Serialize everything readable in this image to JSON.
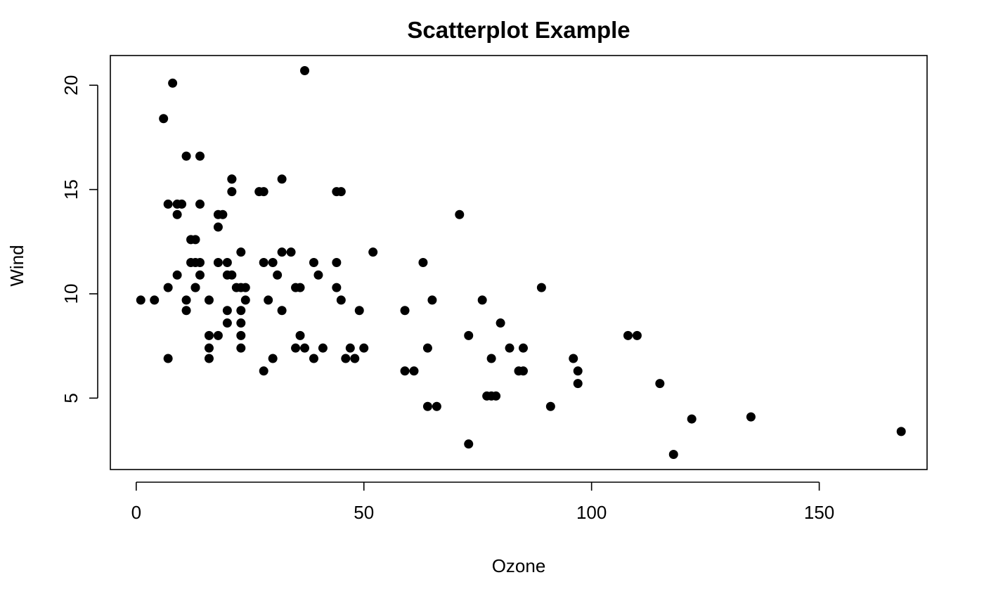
{
  "chart_data": {
    "type": "scatter",
    "title": "Scatterplot Example",
    "xlabel": "Ozone",
    "ylabel": "Wind",
    "xlim": [
      -5.68,
      173.68
    ],
    "ylim": [
      1.576,
      21.424
    ],
    "xticks": [
      0,
      50,
      100,
      150
    ],
    "yticks": [
      5,
      10,
      15,
      20
    ],
    "grid": false,
    "legend": "none",
    "point_color": "#000000",
    "points": [
      {
        "x": 41,
        "y": 7.4
      },
      {
        "x": 36,
        "y": 8.0
      },
      {
        "x": 12,
        "y": 12.6
      },
      {
        "x": 18,
        "y": 11.5
      },
      {
        "x": 28,
        "y": 14.9
      },
      {
        "x": 23,
        "y": 8.6
      },
      {
        "x": 19,
        "y": 13.8
      },
      {
        "x": 8,
        "y": 20.1
      },
      {
        "x": 7,
        "y": 6.9
      },
      {
        "x": 16,
        "y": 9.7
      },
      {
        "x": 11,
        "y": 9.2
      },
      {
        "x": 14,
        "y": 10.9
      },
      {
        "x": 18,
        "y": 13.2
      },
      {
        "x": 14,
        "y": 11.5
      },
      {
        "x": 34,
        "y": 12.0
      },
      {
        "x": 6,
        "y": 18.4
      },
      {
        "x": 30,
        "y": 11.5
      },
      {
        "x": 11,
        "y": 9.7
      },
      {
        "x": 1,
        "y": 9.7
      },
      {
        "x": 11,
        "y": 16.6
      },
      {
        "x": 4,
        "y": 9.7
      },
      {
        "x": 32,
        "y": 12.0
      },
      {
        "x": 23,
        "y": 12.0
      },
      {
        "x": 45,
        "y": 14.9
      },
      {
        "x": 115,
        "y": 5.7
      },
      {
        "x": 37,
        "y": 7.4
      },
      {
        "x": 29,
        "y": 9.7
      },
      {
        "x": 71,
        "y": 13.8
      },
      {
        "x": 39,
        "y": 11.5
      },
      {
        "x": 23,
        "y": 8.0
      },
      {
        "x": 21,
        "y": 14.9
      },
      {
        "x": 37,
        "y": 20.7
      },
      {
        "x": 20,
        "y": 9.2
      },
      {
        "x": 12,
        "y": 11.5
      },
      {
        "x": 13,
        "y": 10.3
      },
      {
        "x": 135,
        "y": 4.1
      },
      {
        "x": 49,
        "y": 9.2
      },
      {
        "x": 32,
        "y": 9.2
      },
      {
        "x": 64,
        "y": 4.6
      },
      {
        "x": 40,
        "y": 10.9
      },
      {
        "x": 77,
        "y": 5.1
      },
      {
        "x": 97,
        "y": 6.3
      },
      {
        "x": 97,
        "y": 5.7
      },
      {
        "x": 85,
        "y": 7.4
      },
      {
        "x": 10,
        "y": 14.3
      },
      {
        "x": 27,
        "y": 14.9
      },
      {
        "x": 7,
        "y": 14.3
      },
      {
        "x": 48,
        "y": 6.9
      },
      {
        "x": 35,
        "y": 10.3
      },
      {
        "x": 61,
        "y": 6.3
      },
      {
        "x": 79,
        "y": 5.1
      },
      {
        "x": 63,
        "y": 11.5
      },
      {
        "x": 16,
        "y": 6.9
      },
      {
        "x": 80,
        "y": 8.6
      },
      {
        "x": 108,
        "y": 8.0
      },
      {
        "x": 20,
        "y": 8.6
      },
      {
        "x": 52,
        "y": 12.0
      },
      {
        "x": 82,
        "y": 7.4
      },
      {
        "x": 50,
        "y": 7.4
      },
      {
        "x": 64,
        "y": 7.4
      },
      {
        "x": 59,
        "y": 9.2
      },
      {
        "x": 39,
        "y": 6.9
      },
      {
        "x": 9,
        "y": 13.8
      },
      {
        "x": 16,
        "y": 7.4
      },
      {
        "x": 78,
        "y": 6.9
      },
      {
        "x": 35,
        "y": 7.4
      },
      {
        "x": 66,
        "y": 4.6
      },
      {
        "x": 122,
        "y": 4.0
      },
      {
        "x": 89,
        "y": 10.3
      },
      {
        "x": 110,
        "y": 8.0
      },
      {
        "x": 44,
        "y": 11.5
      },
      {
        "x": 28,
        "y": 11.5
      },
      {
        "x": 65,
        "y": 9.7
      },
      {
        "x": 22,
        "y": 10.3
      },
      {
        "x": 59,
        "y": 6.3
      },
      {
        "x": 23,
        "y": 7.4
      },
      {
        "x": 31,
        "y": 10.9
      },
      {
        "x": 44,
        "y": 10.3
      },
      {
        "x": 21,
        "y": 15.5
      },
      {
        "x": 9,
        "y": 14.3
      },
      {
        "x": 45,
        "y": 9.7
      },
      {
        "x": 168,
        "y": 3.4
      },
      {
        "x": 73,
        "y": 8.0
      },
      {
        "x": 76,
        "y": 9.7
      },
      {
        "x": 118,
        "y": 2.3
      },
      {
        "x": 84,
        "y": 6.3
      },
      {
        "x": 85,
        "y": 6.3
      },
      {
        "x": 96,
        "y": 6.9
      },
      {
        "x": 78,
        "y": 5.1
      },
      {
        "x": 73,
        "y": 2.8
      },
      {
        "x": 91,
        "y": 4.6
      },
      {
        "x": 47,
        "y": 7.4
      },
      {
        "x": 32,
        "y": 15.5
      },
      {
        "x": 20,
        "y": 10.9
      },
      {
        "x": 23,
        "y": 10.3
      },
      {
        "x": 21,
        "y": 10.9
      },
      {
        "x": 24,
        "y": 9.7
      },
      {
        "x": 44,
        "y": 14.9
      },
      {
        "x": 21,
        "y": 15.5
      },
      {
        "x": 28,
        "y": 6.3
      },
      {
        "x": 9,
        "y": 10.9
      },
      {
        "x": 13,
        "y": 11.5
      },
      {
        "x": 46,
        "y": 6.9
      },
      {
        "x": 18,
        "y": 13.8
      },
      {
        "x": 13,
        "y": 10.3
      },
      {
        "x": 24,
        "y": 10.3
      },
      {
        "x": 16,
        "y": 8.0
      },
      {
        "x": 13,
        "y": 12.6
      },
      {
        "x": 23,
        "y": 9.2
      },
      {
        "x": 36,
        "y": 10.3
      },
      {
        "x": 7,
        "y": 10.3
      },
      {
        "x": 14,
        "y": 16.6
      },
      {
        "x": 30,
        "y": 6.9
      },
      {
        "x": 14,
        "y": 14.3
      },
      {
        "x": 18,
        "y": 8.0
      },
      {
        "x": 20,
        "y": 11.5
      }
    ]
  }
}
